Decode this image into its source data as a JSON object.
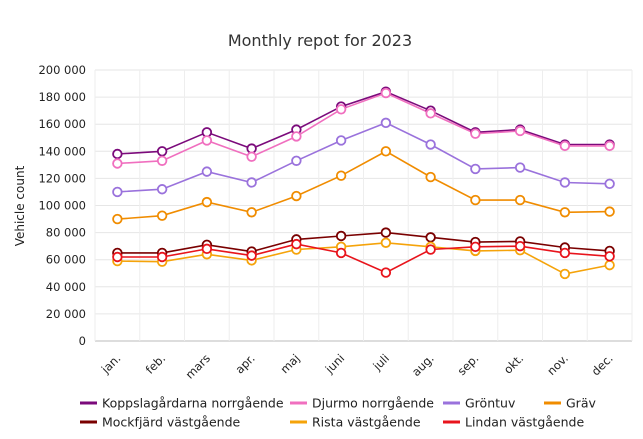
{
  "chart_data": {
    "type": "line",
    "title": "Monthly repot for 2023",
    "ylabel": "Vehicle count",
    "xlabel": "",
    "ylim": [
      0,
      200000
    ],
    "ytick_labels": [
      "0",
      "20 000",
      "40 000",
      "60 000",
      "80 000",
      "100 000",
      "120 000",
      "140 000",
      "160 000",
      "180 000",
      "200 000"
    ],
    "yticks": [
      0,
      20000,
      40000,
      60000,
      80000,
      100000,
      120000,
      140000,
      160000,
      180000,
      200000
    ],
    "categories": [
      "jan.",
      "feb.",
      "mars",
      "apr.",
      "maj",
      "juni",
      "juli",
      "aug.",
      "sep.",
      "okt.",
      "nov.",
      "dec."
    ],
    "grid": true,
    "legend_position": "bottom",
    "series": [
      {
        "name": "Koppslagårdarna norrgående",
        "color": "#7b0a7b",
        "values": [
          138000,
          140000,
          154000,
          142000,
          156000,
          173000,
          184000,
          170000,
          154000,
          156000,
          145000,
          145000
        ]
      },
      {
        "name": "Djurmo norrgående",
        "color": "#f06fbf",
        "values": [
          131000,
          133000,
          148000,
          136000,
          151000,
          171000,
          183000,
          168000,
          153000,
          155000,
          144000,
          144000
        ]
      },
      {
        "name": "Gröntuv",
        "color": "#9a72dc",
        "values": [
          110000,
          112000,
          125000,
          117000,
          133000,
          148000,
          161000,
          145000,
          127000,
          128000,
          117000,
          116000
        ]
      },
      {
        "name": "Gräv",
        "color": "#f08c00",
        "values": [
          90000,
          92500,
          102500,
          95000,
          107000,
          122000,
          140000,
          121000,
          104000,
          104000,
          95000,
          95500
        ]
      },
      {
        "name": "Mockfjärd västgående",
        "color": "#7a0000",
        "values": [
          65000,
          65000,
          71000,
          66000,
          75000,
          77500,
          80000,
          76500,
          73000,
          73500,
          69000,
          66500
        ]
      },
      {
        "name": "Rista västgående",
        "color": "#f5a30a",
        "values": [
          59000,
          58500,
          64000,
          59500,
          67500,
          69500,
          72500,
          69500,
          66500,
          67000,
          49500,
          56000
        ]
      },
      {
        "name": "Lindan västgående",
        "color": "#e8141c",
        "values": [
          62000,
          62000,
          68000,
          63000,
          71500,
          65000,
          50500,
          67500,
          69500,
          70000,
          65000,
          62500
        ]
      }
    ]
  }
}
